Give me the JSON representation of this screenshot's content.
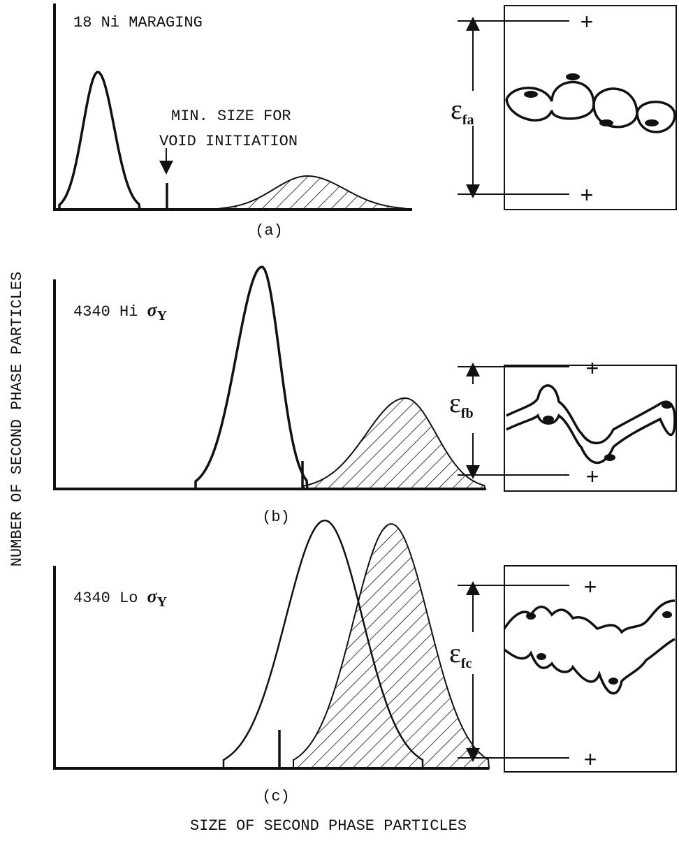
{
  "y_axis_label": "NUMBER OF SECOND PHASE PARTICLES",
  "x_axis_label": "SIZE OF SECOND PHASE PARTICLES",
  "panels": [
    {
      "title": "18 Ni MARAGING",
      "caption": "(a)",
      "strain_symbol": "ε",
      "strain_subscript": "fa",
      "annotation": [
        "MIN. SIZE FOR",
        "VOID INITIATION"
      ]
    },
    {
      "title": "4340 Hi",
      "title_symbol": "σ",
      "title_subscript": "Y",
      "caption": "(b)",
      "strain_symbol": "ε",
      "strain_subscript": "fb"
    },
    {
      "title": "4340 Lo",
      "title_symbol": "σ",
      "title_subscript": "Y",
      "caption": "(c)",
      "strain_symbol": "ε",
      "strain_subscript": "fc"
    }
  ]
}
